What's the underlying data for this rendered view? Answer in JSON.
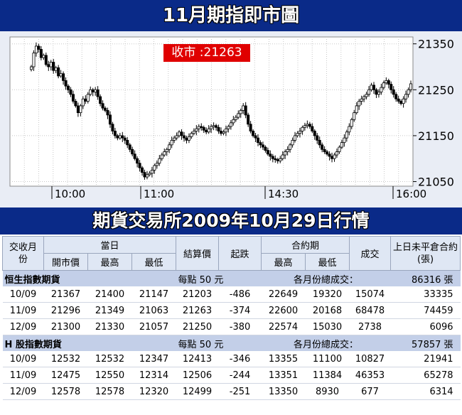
{
  "page": {
    "title": "11月期指即市圖",
    "section_title": "期貨交易所2009年10月29日行情"
  },
  "colors": {
    "banner": "#0a2a88",
    "chart_bg": "#e9edf5",
    "close_badge": "#e00000",
    "header_row": "#dfe7f4",
    "section_row": "#c3cfe8"
  },
  "chart_data": {
    "type": "candlestick",
    "title": "11月期指即市圖",
    "annotation": "收市 :21263",
    "close_value": 21263,
    "x_ticks": [
      "10:00",
      "11:00",
      "14:30",
      "16:00"
    ],
    "y_ticks": [
      21350,
      21250,
      21150,
      21050
    ],
    "ylim": [
      21040,
      21365
    ],
    "grid": true,
    "series": [
      {
        "values": [
          21300,
          21330,
          21345,
          21338,
          21320,
          21325,
          21305,
          21300,
          21310,
          21292,
          21298,
          21280,
          21285,
          21270,
          21258,
          21250,
          21240,
          21225,
          21215,
          21200,
          21215,
          21230,
          21225,
          21240,
          21250,
          21245,
          21250,
          21235,
          21220,
          21210,
          21205,
          21195,
          21175,
          21160,
          21150,
          21145,
          21150,
          21145,
          21140,
          21130,
          21120,
          21110,
          21100,
          21090,
          21080,
          21070,
          21060,
          21065,
          21068,
          21075,
          21085,
          21090,
          21100,
          21108,
          21115,
          21120,
          21130,
          21140,
          21145,
          21150,
          21158,
          21150,
          21145,
          21140,
          21148,
          21155,
          21160,
          21165,
          21170,
          21168,
          21162,
          21158,
          21165,
          21170,
          21172,
          21168,
          21160,
          21155,
          21158,
          21165,
          21170,
          21178,
          21185,
          21190,
          21198,
          21205,
          21215,
          21195,
          21175,
          21160,
          21150,
          21145,
          21135,
          21130,
          21125,
          21118,
          21110,
          21105,
          21100,
          21098,
          21095,
          21100,
          21108,
          21115,
          21120,
          21130,
          21140,
          21150,
          21155,
          21160,
          21168,
          21172,
          21175,
          21170,
          21160,
          21150,
          21140,
          21130,
          21120,
          21115,
          21110,
          21105,
          21100,
          21108,
          21115,
          21125,
          21135,
          21145,
          21158,
          21170,
          21185,
          21200,
          21215,
          21225,
          21230,
          21235,
          21240,
          21250,
          21260,
          21250,
          21240,
          21245,
          21255,
          21265,
          21270,
          21262,
          21250,
          21240,
          21230,
          21225,
          21220,
          21230,
          21240,
          21250,
          21263
        ]
      }
    ]
  },
  "table": {
    "headers": {
      "month": "交收月份",
      "today_group": "當日",
      "open": "開市價",
      "high": "最高",
      "low": "最低",
      "settle": "結算價",
      "change": "起跌",
      "contract_group": "合約期",
      "c_high": "最高",
      "c_low": "最低",
      "volume": "成交",
      "oi": "上日未平倉合約(張)"
    },
    "sections": [
      {
        "name": "恒生指數期貨",
        "point_value": "每點 50 元",
        "total_label": "各月份總成交：",
        "total_value": "86316 張",
        "rows": [
          {
            "month": "10/09",
            "open": "21367",
            "high": "21400",
            "low": "21147",
            "settle": "21203",
            "change": "-486",
            "c_high": "22649",
            "c_low": "19320",
            "volume": "15074",
            "oi": "33335"
          },
          {
            "month": "11/09",
            "open": "21296",
            "high": "21349",
            "low": "21063",
            "settle": "21263",
            "change": "-374",
            "c_high": "22600",
            "c_low": "20168",
            "volume": "68478",
            "oi": "74459"
          },
          {
            "month": "12/09",
            "open": "21300",
            "high": "21330",
            "low": "21057",
            "settle": "21250",
            "change": "-380",
            "c_high": "22574",
            "c_low": "15030",
            "volume": "2738",
            "oi": "6096"
          }
        ]
      },
      {
        "name": "H 股指數期貨",
        "point_value": "每點 50 元",
        "total_label": "各月份總成交：",
        "total_value": "57857 張",
        "rows": [
          {
            "month": "10/09",
            "open": "12532",
            "high": "12532",
            "low": "12347",
            "settle": "12413",
            "change": "-346",
            "c_high": "13355",
            "c_low": "11100",
            "volume": "10827",
            "oi": "21941"
          },
          {
            "month": "11/09",
            "open": "12475",
            "high": "12550",
            "low": "12314",
            "settle": "12506",
            "change": "-244",
            "c_high": "13351",
            "c_low": "11384",
            "volume": "46353",
            "oi": "65278"
          },
          {
            "month": "12/09",
            "open": "12578",
            "high": "12578",
            "low": "12320",
            "settle": "12499",
            "change": "-251",
            "c_high": "13350",
            "c_low": "8930",
            "volume": "677",
            "oi": "6314"
          }
        ]
      }
    ]
  }
}
